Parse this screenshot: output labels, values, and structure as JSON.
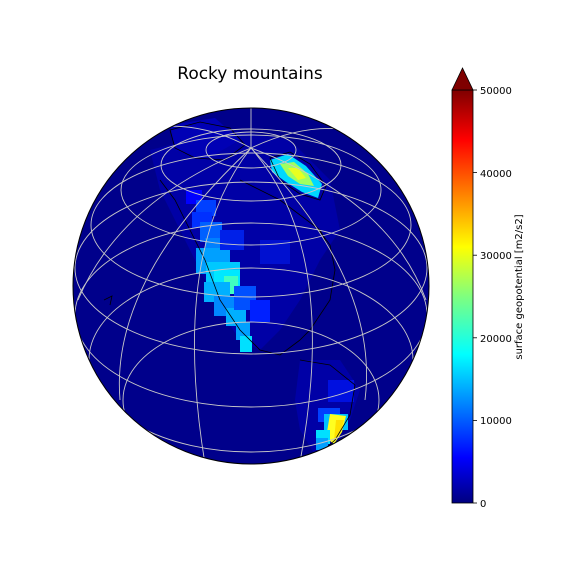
{
  "figure": {
    "title": "Rocky mountains"
  },
  "colorbar": {
    "label": "surface geopotential [m2/s2]",
    "ticks": [
      "0",
      "10000",
      "20000",
      "30000",
      "40000",
      "50000"
    ],
    "tick_values": [
      0,
      10000,
      20000,
      30000,
      40000,
      50000
    ],
    "range": [
      0,
      50000
    ],
    "extend": "max",
    "colormap": "jet",
    "colors": [
      "#00007f",
      "#0000ff",
      "#007fff",
      "#00ffff",
      "#7fff7f",
      "#ffff00",
      "#ff7f00",
      "#ff0000",
      "#7f0000"
    ]
  },
  "map": {
    "projection": "orthographic",
    "view_center": "North America",
    "graticule": "on",
    "coastlines": "on",
    "variable": "surface geopotential",
    "highlighted_features": [
      "Rocky Mountains",
      "Greenland ice sheet",
      "Andes"
    ]
  }
}
